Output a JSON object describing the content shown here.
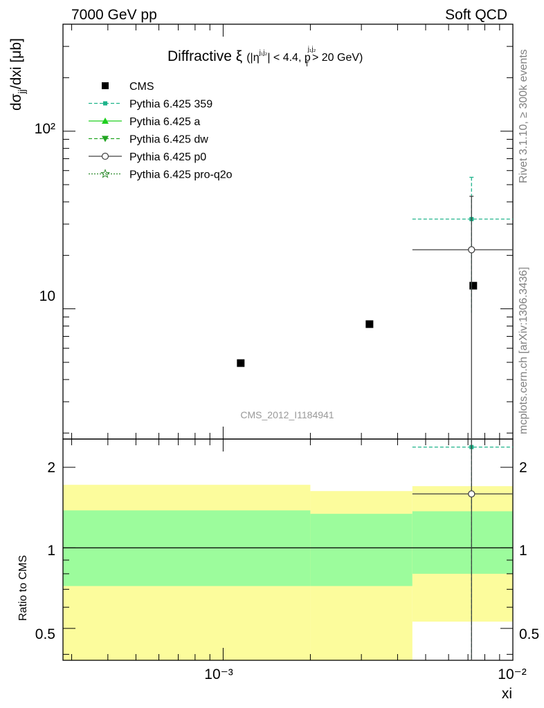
{
  "header": {
    "left": "7000 GeV pp",
    "right": "Soft QCD"
  },
  "side_labels": {
    "rivet": "Rivet 3.1.10, ≥ 300k events",
    "mcplots": "mcplots.cern.ch [arXiv:1306.3436]"
  },
  "analysis_tag": "CMS_2012_I1184941",
  "plot_title": {
    "main": "Diffractive ξ",
    "cut1": "(|η",
    "cut1_sup": "j₁j₂",
    "cut1_rest": "| < 4.4, p",
    "cut2_sup": "j₁j₂",
    "cut2_sub": "T",
    "cut2_rest": " > 20 GeV)"
  },
  "axes": {
    "ylabel_main": "dσjj/dxi [μb]",
    "ylabel_main_base": "dσ",
    "ylabel_main_sub": "jj",
    "ylabel_main_rest": "/dxi [μb]",
    "ylabel_ratio": "Ratio to CMS",
    "xlabel": "xi",
    "xticks": [
      "10⁻³",
      "10⁻²"
    ],
    "yticks_main": [
      "10",
      "10²"
    ],
    "yticks_ratio": [
      "0.5",
      "1",
      "2"
    ]
  },
  "legend": [
    {
      "label": "CMS",
      "color": "#000000",
      "marker": "square",
      "line": "none"
    },
    {
      "label": "Pythia 6.425 359",
      "color": "#1db38a",
      "marker": "small-square",
      "line": "dashed"
    },
    {
      "label": "Pythia 6.425 a",
      "color": "#1ecf1e",
      "marker": "triangle-up",
      "line": "solid"
    },
    {
      "label": "Pythia 6.425 dw",
      "color": "#22a522",
      "marker": "triangle-down",
      "line": "dashed"
    },
    {
      "label": "Pythia 6.425 p0",
      "color": "#404040",
      "marker": "open-circle",
      "line": "solid"
    },
    {
      "label": "Pythia 6.425 pro-q2o",
      "color": "#2e8b2e",
      "marker": "open-star",
      "line": "dotted"
    }
  ],
  "chart_data": {
    "type": "scatter",
    "x_scale": "log",
    "y_scale": "log",
    "xlim": [
      0.00028,
      0.01
    ],
    "ylim_main": [
      1.85,
      400
    ],
    "ylim_ratio": [
      0.38,
      2.55
    ],
    "bins": [
      {
        "xlow": 0.00028,
        "xhigh": 0.002,
        "xcenter": 0.00115
      },
      {
        "xlow": 0.002,
        "xhigh": 0.0045,
        "xcenter": 0.0032
      },
      {
        "xlow": 0.0045,
        "xhigh": 0.01,
        "xcenter": 0.0072
      }
    ],
    "series": [
      {
        "name": "CMS",
        "x": [
          0.00115,
          0.0032,
          0.0073
        ],
        "y": [
          4.95,
          8.2,
          13.5
        ],
        "ratio_band_inner": [
          [
            0.72,
            1.38
          ],
          [
            0.72,
            1.34
          ],
          [
            0.8,
            1.37
          ]
        ],
        "ratio_band_outer": [
          [
            0.3,
            1.72
          ],
          [
            0.3,
            1.63
          ],
          [
            0.53,
            1.7
          ]
        ]
      },
      {
        "name": "Pythia 6.425 359",
        "x": [
          0.0072
        ],
        "y": [
          32.0
        ],
        "xerr": [
          [
            0.0045,
            0.01
          ]
        ],
        "yerr": [
          [
            9.5,
            55.0
          ]
        ],
        "ratio": [
          2.38
        ]
      },
      {
        "name": "Pythia 6.425 p0",
        "x": [
          0.0072
        ],
        "y": [
          21.5
        ],
        "xerr": [
          [
            0.0045,
            0.01
          ]
        ],
        "yerr": [
          [
            0.5,
            43.0
          ]
        ],
        "ratio": [
          1.59
        ]
      }
    ]
  },
  "colors": {
    "band_inner": "#9cfc9c",
    "band_outer": "#fcfc9c",
    "frame": "#000000",
    "side_text": "#808080",
    "tag_text": "#999999"
  }
}
